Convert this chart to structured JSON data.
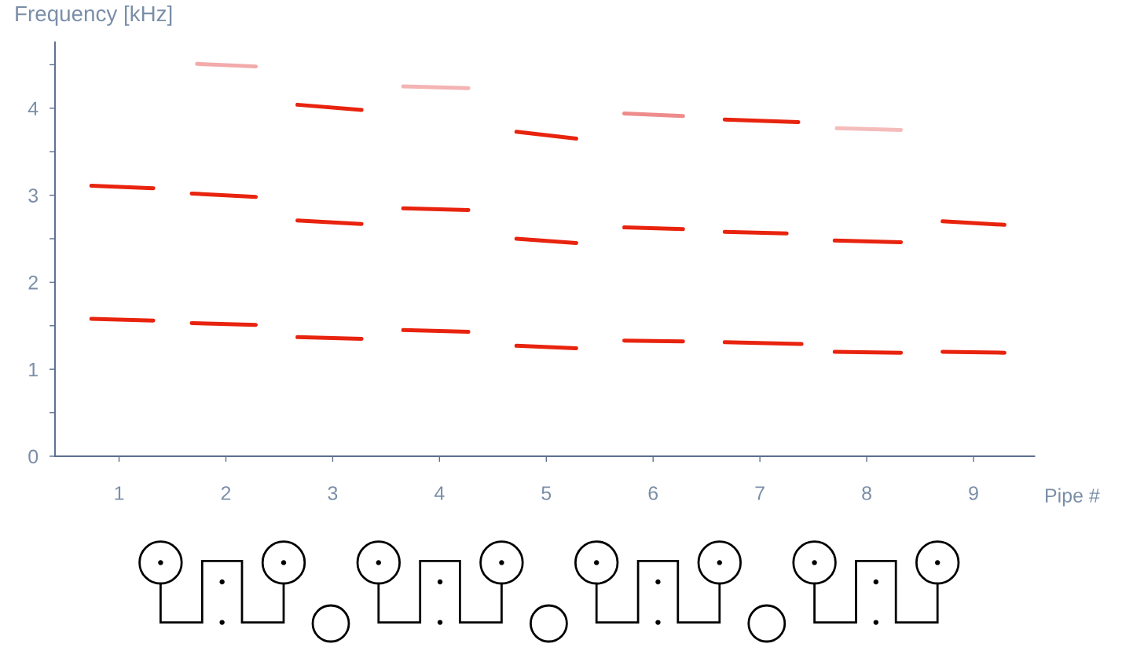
{
  "chart_data": {
    "type": "line",
    "xlabel": "Pipe #",
    "ylabel": "Frequency [kHz]",
    "xlim": [
      0.4,
      9.57
    ],
    "ylim": [
      0,
      4.76
    ],
    "xticks": [
      1,
      2,
      3,
      4,
      5,
      6,
      7,
      8,
      9
    ],
    "yticks": [
      0,
      {
        "value": 0.5,
        "label": null
      },
      1,
      {
        "value": 1.5,
        "label": null
      },
      2,
      {
        "value": 2.5,
        "label": null
      },
      3,
      {
        "value": 3.5,
        "label": null
      },
      4,
      {
        "value": 4.5,
        "label": null
      }
    ],
    "line_style": "solid",
    "series": [
      {
        "color": "#e8230e",
        "x": [
          0.74,
          1.32
        ],
        "values": [
          1.58,
          1.56
        ]
      },
      {
        "color": "#e8230e",
        "x": [
          0.74,
          1.32
        ],
        "values": [
          3.11,
          3.08
        ]
      },
      {
        "color": "#e8230e",
        "x": [
          1.68,
          2.28
        ],
        "values": [
          1.53,
          1.51
        ]
      },
      {
        "color": "#e8230e",
        "x": [
          1.68,
          2.28
        ],
        "values": [
          3.02,
          2.98
        ]
      },
      {
        "color": "#f3aaaa",
        "x": [
          1.73,
          2.28
        ],
        "values": [
          4.51,
          4.48
        ]
      },
      {
        "color": "#e8230e",
        "x": [
          2.67,
          3.27
        ],
        "values": [
          1.37,
          1.35
        ]
      },
      {
        "color": "#e8230e",
        "x": [
          2.67,
          3.27
        ],
        "values": [
          2.71,
          2.67
        ]
      },
      {
        "color": "#e8230e",
        "x": [
          2.67,
          3.27
        ],
        "values": [
          4.04,
          3.98
        ]
      },
      {
        "color": "#e8230e",
        "x": [
          3.66,
          4.27
        ],
        "values": [
          1.45,
          1.43
        ]
      },
      {
        "color": "#e8230e",
        "x": [
          3.66,
          4.27
        ],
        "values": [
          2.85,
          2.83
        ]
      },
      {
        "color": "#f4b4b4",
        "x": [
          3.66,
          4.27
        ],
        "values": [
          4.25,
          4.23
        ]
      },
      {
        "color": "#e8230e",
        "x": [
          4.72,
          5.28
        ],
        "values": [
          1.27,
          1.24
        ]
      },
      {
        "color": "#e8230e",
        "x": [
          4.72,
          5.28
        ],
        "values": [
          2.5,
          2.45
        ]
      },
      {
        "color": "#e8230e",
        "x": [
          4.72,
          5.28
        ],
        "values": [
          3.73,
          3.65
        ]
      },
      {
        "color": "#e8230e",
        "x": [
          5.73,
          6.28
        ],
        "values": [
          1.33,
          1.32
        ]
      },
      {
        "color": "#e8230e",
        "x": [
          5.73,
          6.28
        ],
        "values": [
          2.63,
          2.61
        ]
      },
      {
        "color": "#ee8c8c",
        "x": [
          5.73,
          6.28
        ],
        "values": [
          3.94,
          3.91
        ]
      },
      {
        "color": "#e8230e",
        "x": [
          6.67,
          7.39
        ],
        "values": [
          1.31,
          1.29
        ]
      },
      {
        "color": "#e8230e",
        "x": [
          6.67,
          7.25
        ],
        "values": [
          2.58,
          2.56
        ]
      },
      {
        "color": "#e8230e",
        "x": [
          6.67,
          7.36
        ],
        "values": [
          3.87,
          3.84
        ]
      },
      {
        "color": "#e8230e",
        "x": [
          7.7,
          8.32
        ],
        "values": [
          1.2,
          1.19
        ]
      },
      {
        "color": "#e8230e",
        "x": [
          7.7,
          8.32
        ],
        "values": [
          2.48,
          2.46
        ]
      },
      {
        "color": "#f5bcbc",
        "x": [
          7.72,
          8.32
        ],
        "values": [
          3.77,
          3.75
        ]
      },
      {
        "color": "#e8230e",
        "x": [
          8.71,
          9.29
        ],
        "values": [
          1.2,
          1.19
        ]
      },
      {
        "color": "#e8230e",
        "x": [
          8.71,
          9.29
        ],
        "values": [
          2.7,
          2.66
        ]
      }
    ]
  }
}
